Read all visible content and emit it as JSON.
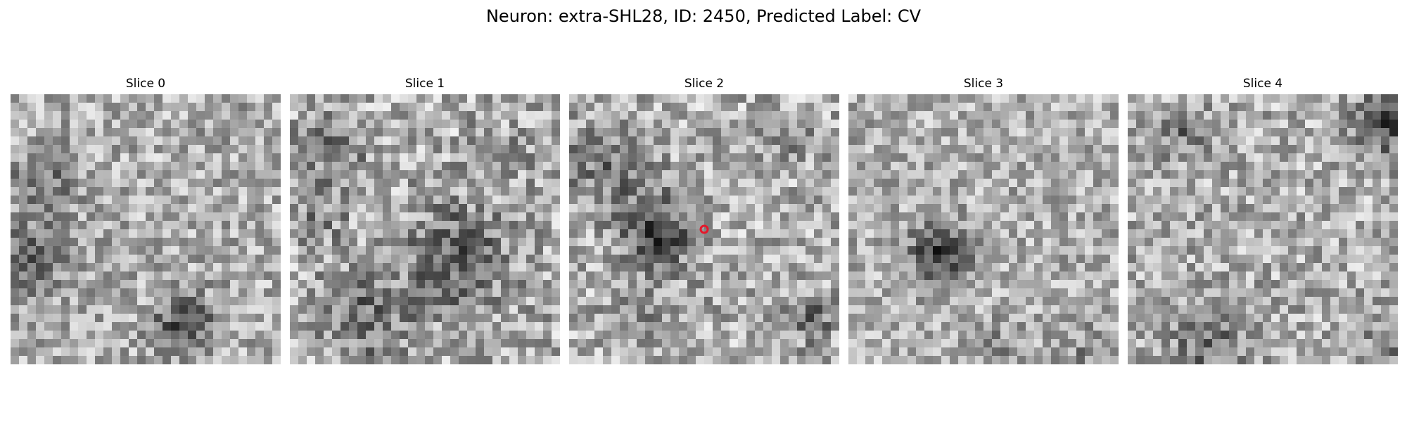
{
  "figure": {
    "title": "Neuron: extra-SHL28, ID: 2450, Predicted Label: CV"
  },
  "slices": [
    {
      "title": "Slice 0",
      "marker": false
    },
    {
      "title": "Slice 1",
      "marker": false
    },
    {
      "title": "Slice 2",
      "marker": true
    },
    {
      "title": "Slice 3",
      "marker": false
    },
    {
      "title": "Slice 4",
      "marker": false
    }
  ],
  "colors": {
    "colormap": "gray",
    "marker": "#e5172a"
  }
}
